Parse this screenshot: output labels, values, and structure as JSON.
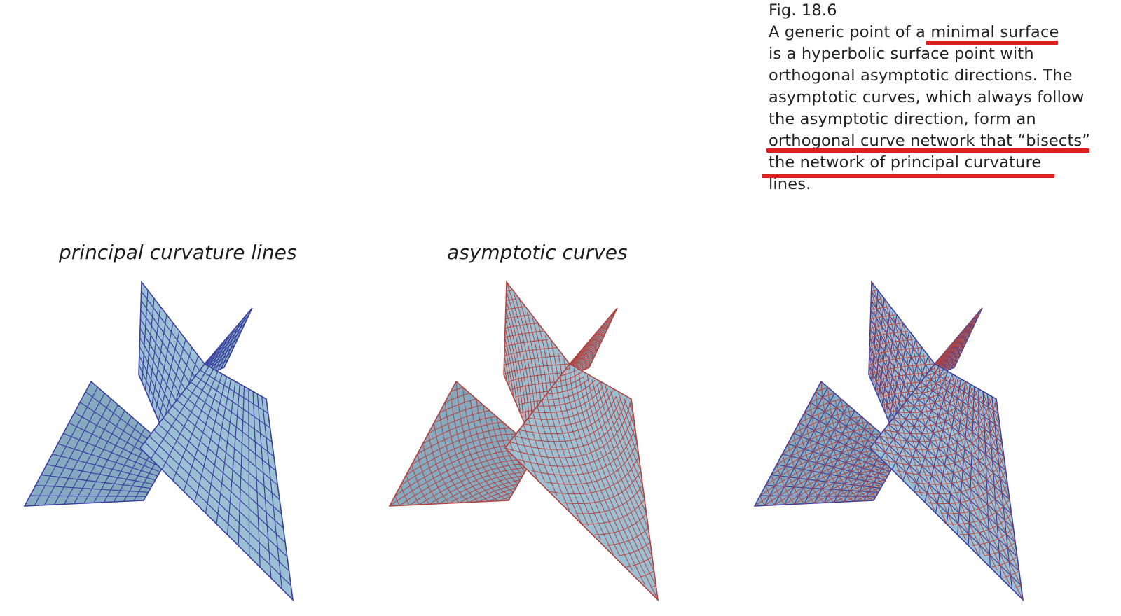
{
  "caption": {
    "figure_label": "Fig. 18.6",
    "lines": [
      "A generic point of a minimal surface",
      "is a hyperbolic surface point with",
      "orthogonal asymptotic directions. The",
      "asymptotic curves, which always follow",
      "the asymptotic direction, form an",
      "orthogonal curve network that “bisects”",
      "the network of principal curvature",
      "lines."
    ],
    "highlight_color": "#dd1f1f"
  },
  "panels": [
    {
      "title": "principal curvature lines",
      "line_family": "principal",
      "line_color": "#3a3fa0"
    },
    {
      "title": "asymptotic curves",
      "line_family": "asymptotic",
      "line_color": "#b2433f"
    },
    {
      "title": "",
      "line_family": "both",
      "line_color": "#3a3fa0"
    }
  ],
  "colors": {
    "surface_fill": "#9cc0d3",
    "surface_fill_dark": "#86abc1",
    "principal_lines": "#3a3fa0",
    "asymptotic_lines": "#b2433f"
  }
}
